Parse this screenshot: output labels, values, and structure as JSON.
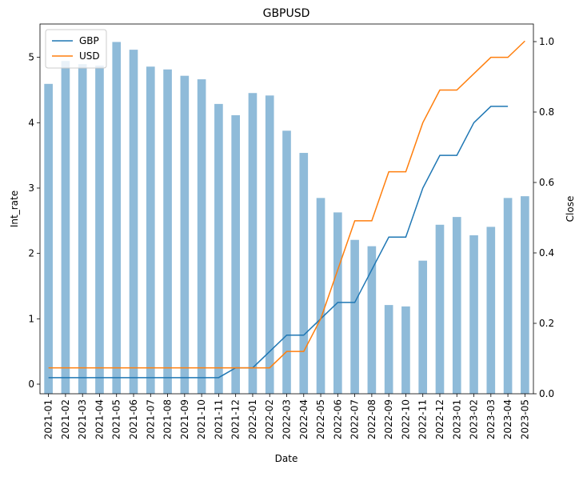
{
  "chart_data": {
    "type": "bar",
    "title": "GBPUSD",
    "x_label": "Date",
    "y_label": "Int_rate",
    "y2_label": "Close",
    "categories": [
      "2021-01",
      "2021-02",
      "2021-03",
      "2021-04",
      "2021-05",
      "2021-06",
      "2021-07",
      "2021-08",
      "2021-09",
      "2021-10",
      "2021-11",
      "2021-12",
      "2022-01",
      "2022-02",
      "2022-03",
      "2022-04",
      "2022-05",
      "2022-06",
      "2022-07",
      "2022-08",
      "2022-09",
      "2022-10",
      "2022-11",
      "2022-12",
      "2023-01",
      "2023-02",
      "2023-03",
      "2023-04",
      "2023-05"
    ],
    "ylim": [
      -0.147,
      5.51
    ],
    "yticks": [
      0,
      1,
      2,
      3,
      4,
      5
    ],
    "y2lim": [
      0,
      1.05
    ],
    "y2ticks": [
      {
        "value": 0,
        "label": "0.0"
      },
      {
        "value": 0.2,
        "label": "0.2"
      },
      {
        "value": 0.4,
        "label": "0.4"
      },
      {
        "value": 0.6,
        "label": "0.6"
      },
      {
        "value": 0.8,
        "label": "0.8"
      },
      {
        "value": 1,
        "label": "1.0"
      }
    ],
    "legend": "upper left",
    "series": [
      {
        "type": "bar",
        "axis": "y2",
        "color": "#1f77b4",
        "values": [
          0.88,
          0.945,
          0.936,
          0.932,
          0.999,
          0.977,
          0.929,
          0.921,
          0.903,
          0.893,
          0.823,
          0.791,
          0.854,
          0.847,
          0.747,
          0.684,
          0.556,
          0.515,
          0.437,
          0.419,
          0.252,
          0.248,
          0.378,
          0.48,
          0.502,
          0.45,
          0.474,
          0.556,
          0.561
        ]
      },
      {
        "type": "line",
        "name": "GBP",
        "color": "#1f77b4",
        "values": [
          0.1,
          0.1,
          0.1,
          0.1,
          0.1,
          0.1,
          0.1,
          0.1,
          0.1,
          0.1,
          0.1,
          0.25,
          0.25,
          0.5,
          0.75,
          0.75,
          1.0,
          1.25,
          1.25,
          1.75,
          2.25,
          2.25,
          3.0,
          3.5,
          3.5,
          4.0,
          4.25,
          4.25,
          null
        ]
      },
      {
        "type": "line",
        "name": "USD",
        "color": "#ff7f0e",
        "values": [
          0.25,
          0.25,
          0.25,
          0.25,
          0.25,
          0.25,
          0.25,
          0.25,
          0.25,
          0.25,
          0.25,
          0.25,
          0.25,
          0.25,
          0.5,
          0.5,
          1.0,
          1.75,
          2.5,
          2.5,
          3.25,
          3.25,
          4.0,
          4.5,
          4.5,
          4.75,
          5.0,
          5.0,
          5.25
        ]
      }
    ]
  }
}
